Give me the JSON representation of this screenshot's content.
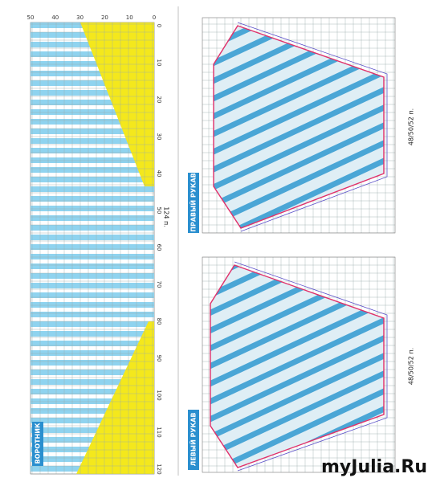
{
  "collar": {
    "title": "ВОРОТНИК",
    "width_note": "124 п.",
    "top_ticks": [
      "50",
      "40",
      "30",
      "20",
      "10",
      "0"
    ],
    "side_ticks": [
      "0",
      "10",
      "20",
      "30",
      "40",
      "50",
      "60",
      "70",
      "80",
      "90",
      "100",
      "110",
      "120"
    ]
  },
  "right_sleeve": {
    "title": "ПРАВЫЙ РУКАВ",
    "width_note": "48/50/52 п."
  },
  "left_sleeve": {
    "title": "ЛЕВЫЙ РУКАВ",
    "width_note": "48/50/52 п."
  },
  "watermark": "myJulia.Ru"
}
